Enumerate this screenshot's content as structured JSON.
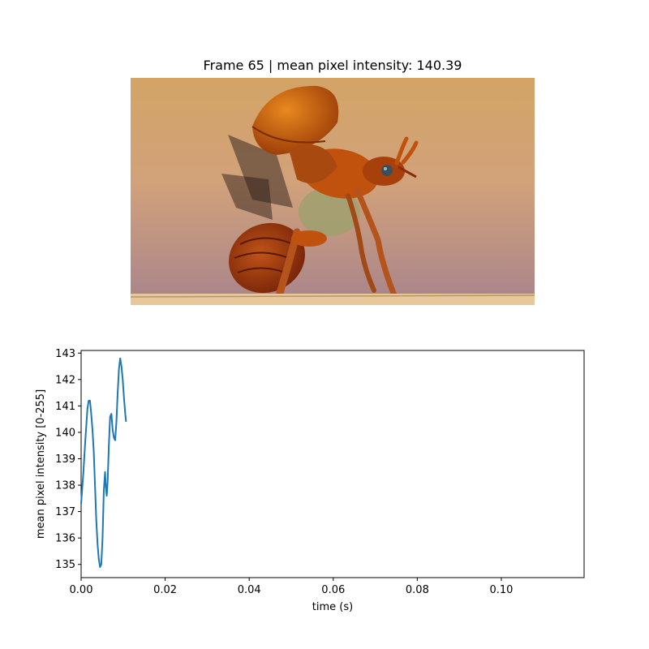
{
  "figure": {
    "title": "Frame 65 | mean pixel intensity: 140.39"
  },
  "image": {
    "subject": "beetle-taking-off-photo",
    "colors": {
      "sky_top": "#d3a466",
      "sky_mid": "#d2a27a",
      "sky_bottom": "#a8848c",
      "shell": "#c0520e",
      "body": "#8a2c0a",
      "leg": "#b4541c",
      "perch": "#e8c79a"
    }
  },
  "chart_data": {
    "type": "line",
    "title": "",
    "xlabel": "time (s)",
    "ylabel": "mean pixel intensity [0-255]",
    "xlim": [
      0,
      0.1197
    ],
    "ylim": [
      134.5,
      143.1
    ],
    "xticks": [
      "0.00",
      "0.02",
      "0.04",
      "0.06",
      "0.08",
      "0.10"
    ],
    "xtick_values": [
      0,
      0.02,
      0.04,
      0.06,
      0.08,
      0.1
    ],
    "yticks": [
      "135",
      "136",
      "137",
      "138",
      "139",
      "140",
      "141",
      "142",
      "143"
    ],
    "ytick_values": [
      135,
      136,
      137,
      138,
      139,
      140,
      141,
      142,
      143
    ],
    "grid": false,
    "line_color": "#1f77b4",
    "series": [
      {
        "x": [
          0.0,
          0.0005,
          0.001,
          0.0015,
          0.0018,
          0.0021,
          0.0024,
          0.0027,
          0.003,
          0.0033,
          0.0036,
          0.0039,
          0.0042,
          0.0045,
          0.0048,
          0.0051,
          0.0054,
          0.0057,
          0.0059,
          0.0061,
          0.0063,
          0.0066,
          0.0069,
          0.0072,
          0.0075,
          0.0078,
          0.0081,
          0.0084,
          0.0087,
          0.009,
          0.0093,
          0.0096,
          0.0099,
          0.0102,
          0.0105,
          0.0107
        ],
        "y": [
          137.3,
          138.4,
          139.7,
          140.9,
          141.2,
          141.2,
          140.7,
          140.1,
          139.3,
          138.0,
          136.7,
          135.8,
          135.2,
          134.9,
          135.0,
          136.0,
          137.8,
          138.5,
          137.9,
          137.6,
          138.1,
          139.5,
          140.6,
          140.7,
          140.1,
          139.8,
          139.7,
          140.4,
          141.5,
          142.4,
          142.8,
          142.5,
          142.0,
          141.3,
          140.7,
          140.4
        ]
      }
    ]
  }
}
